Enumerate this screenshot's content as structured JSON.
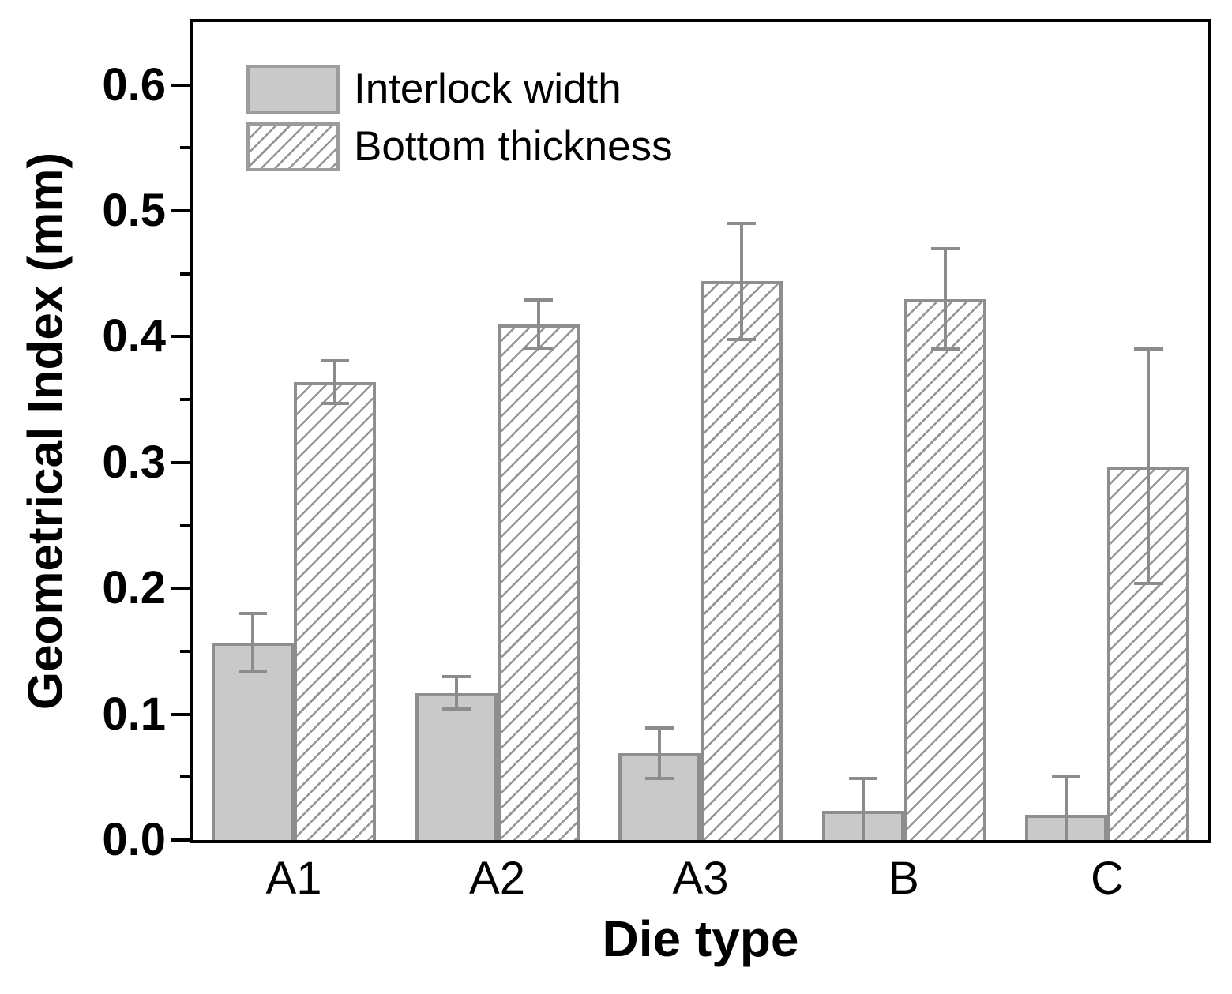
{
  "chart_data": {
    "type": "bar",
    "title": "",
    "xlabel": "Die type",
    "ylabel": "Geometrical Index (mm)",
    "categories": [
      "A1",
      "A2",
      "A3",
      "B",
      "C"
    ],
    "series": [
      {
        "name": "Interlock width",
        "style": "solid",
        "values": [
          0.157,
          0.117,
          0.069,
          0.023,
          0.02
        ],
        "errors": [
          0.023,
          0.013,
          0.02,
          0.026,
          0.03
        ]
      },
      {
        "name": "Bottom thickness",
        "style": "hatch",
        "values": [
          0.364,
          0.41,
          0.444,
          0.43,
          0.297
        ],
        "errors": [
          0.017,
          0.019,
          0.046,
          0.04,
          0.093
        ]
      }
    ],
    "ylim": [
      0,
      0.65
    ],
    "yticks": [
      0.0,
      0.1,
      0.2,
      0.3,
      0.4,
      0.5,
      0.6
    ],
    "ytick_labels": [
      "0.0",
      "0.1",
      "0.2",
      "0.3",
      "0.4",
      "0.5",
      "0.6"
    ],
    "minor_tick_step": 0.05,
    "grid": false,
    "legend_position": "top-left"
  },
  "colors": {
    "background": "#ffffff",
    "axis": "#000000",
    "text": "#000000",
    "bar_fill": "#c9c9c9",
    "bar_edge": "#8e8e8e",
    "hatch_line": "#949494",
    "error_bar": "#8c8c8c"
  }
}
